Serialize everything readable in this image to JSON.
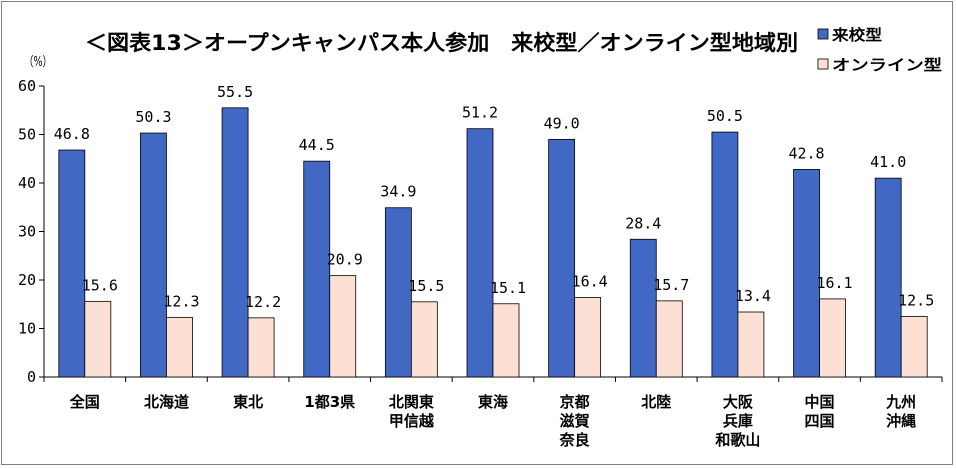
{
  "chart_data": {
    "type": "bar",
    "title": "＜図表13＞オープンキャンパス本人参加　来校型／オンライン型地域別",
    "ylabel": "（%）",
    "ylim": [
      0,
      60
    ],
    "yticks": [
      0,
      10,
      20,
      30,
      40,
      50,
      60
    ],
    "legend_position": "top-right",
    "categories": [
      [
        "全国"
      ],
      [
        "北海道"
      ],
      [
        "東北"
      ],
      [
        "1都3県"
      ],
      [
        "北関東",
        "甲信越"
      ],
      [
        "東海"
      ],
      [
        "京都",
        "滋賀",
        "奈良"
      ],
      [
        "北陸"
      ],
      [
        "大阪",
        "兵庫",
        "和歌山"
      ],
      [
        "中国",
        "四国"
      ],
      [
        "九州",
        "沖縄"
      ]
    ],
    "series": [
      {
        "name": "来校型",
        "color": "#4169c4",
        "values": [
          46.8,
          50.3,
          55.5,
          44.5,
          34.9,
          51.2,
          49.0,
          28.4,
          50.5,
          42.8,
          41.0
        ]
      },
      {
        "name": "オンライン型",
        "color": "#fce0d4",
        "values": [
          15.6,
          12.3,
          12.2,
          20.9,
          15.5,
          15.1,
          16.4,
          15.7,
          13.4,
          16.1,
          12.5
        ]
      }
    ],
    "grid": false
  }
}
